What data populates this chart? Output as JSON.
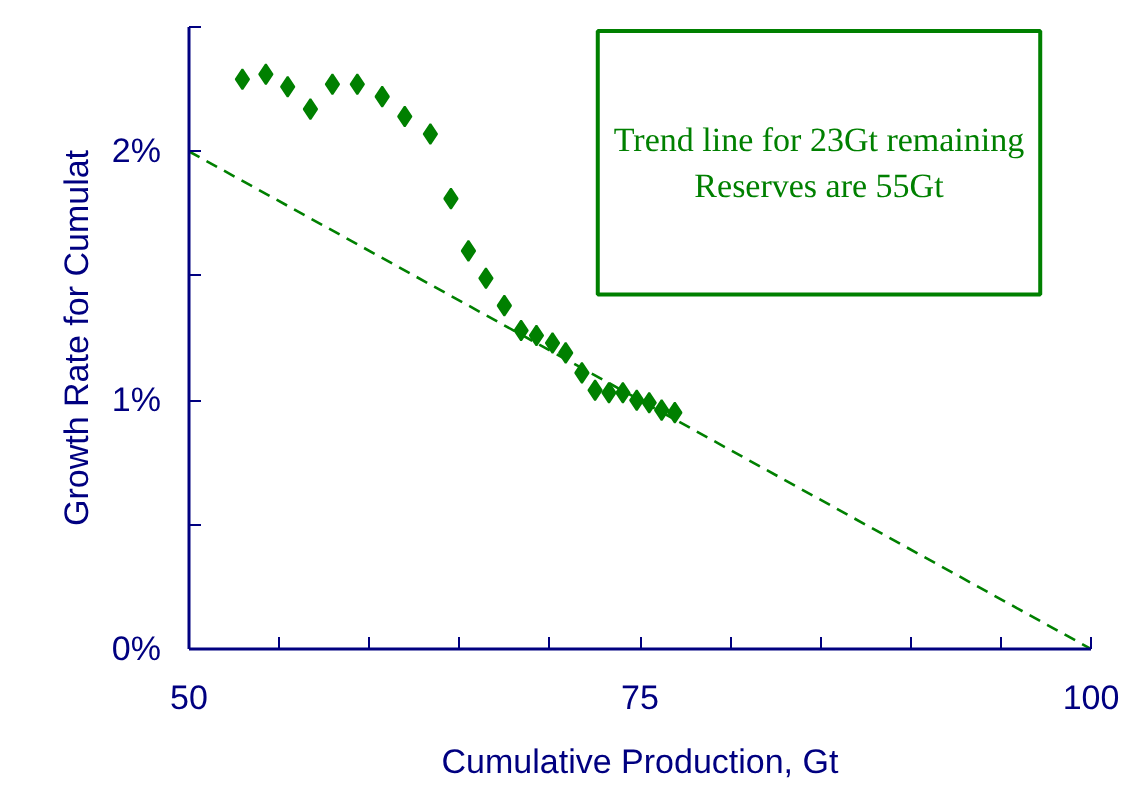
{
  "chart_data": {
    "type": "scatter",
    "xlabel": "Cumulative Production, Gt",
    "ylabel": "Growth Rate for Cumulat",
    "annotations": [
      "Trend line for 23Gt remaining\nReserves are 55Gt"
    ],
    "xlim": [
      50,
      100
    ],
    "ylim": [
      0,
      2.5
    ],
    "xticks": [
      50,
      {
        "value": 55,
        "label": null
      },
      {
        "value": 60,
        "label": null
      },
      {
        "value": 65,
        "label": null
      },
      {
        "value": 70,
        "label": null
      },
      75,
      {
        "value": 80,
        "label": null
      },
      {
        "value": 85,
        "label": null
      },
      {
        "value": 90,
        "label": null
      },
      {
        "value": 95,
        "label": null
      },
      100
    ],
    "yticks": [
      {
        "value": 0,
        "label": "0%"
      },
      {
        "value": 0.5,
        "label": null
      },
      {
        "value": 1,
        "label": "1%"
      },
      {
        "value": 1.5,
        "label": null
      },
      {
        "value": 2,
        "label": "2%"
      },
      {
        "value": 2.5,
        "label": null
      }
    ],
    "grid": false,
    "marker": "diamond",
    "series": [
      {
        "color": "#008000",
        "x": [
          52.96,
          54.26,
          55.47,
          56.73,
          57.95,
          59.33,
          60.71,
          61.96,
          63.38,
          64.52,
          65.49,
          66.46,
          67.48,
          68.41,
          69.26,
          70.15,
          70.88,
          71.78,
          72.51,
          73.28,
          74.05,
          74.82,
          75.51,
          76.2,
          76.93
        ],
        "values": [
          2.29,
          2.31,
          2.26,
          2.17,
          2.27,
          2.27,
          2.22,
          2.14,
          2.07,
          1.81,
          1.6,
          1.49,
          1.38,
          1.28,
          1.26,
          1.23,
          1.19,
          1.11,
          1.04,
          1.03,
          1.03,
          1.0,
          0.99,
          0.96,
          0.95
        ]
      },
      {
        "type": "line",
        "marker": "none",
        "color": "#008000",
        "line_style": "dashed",
        "x": [
          50,
          100
        ],
        "values": [
          2.0,
          0
        ]
      }
    ]
  }
}
